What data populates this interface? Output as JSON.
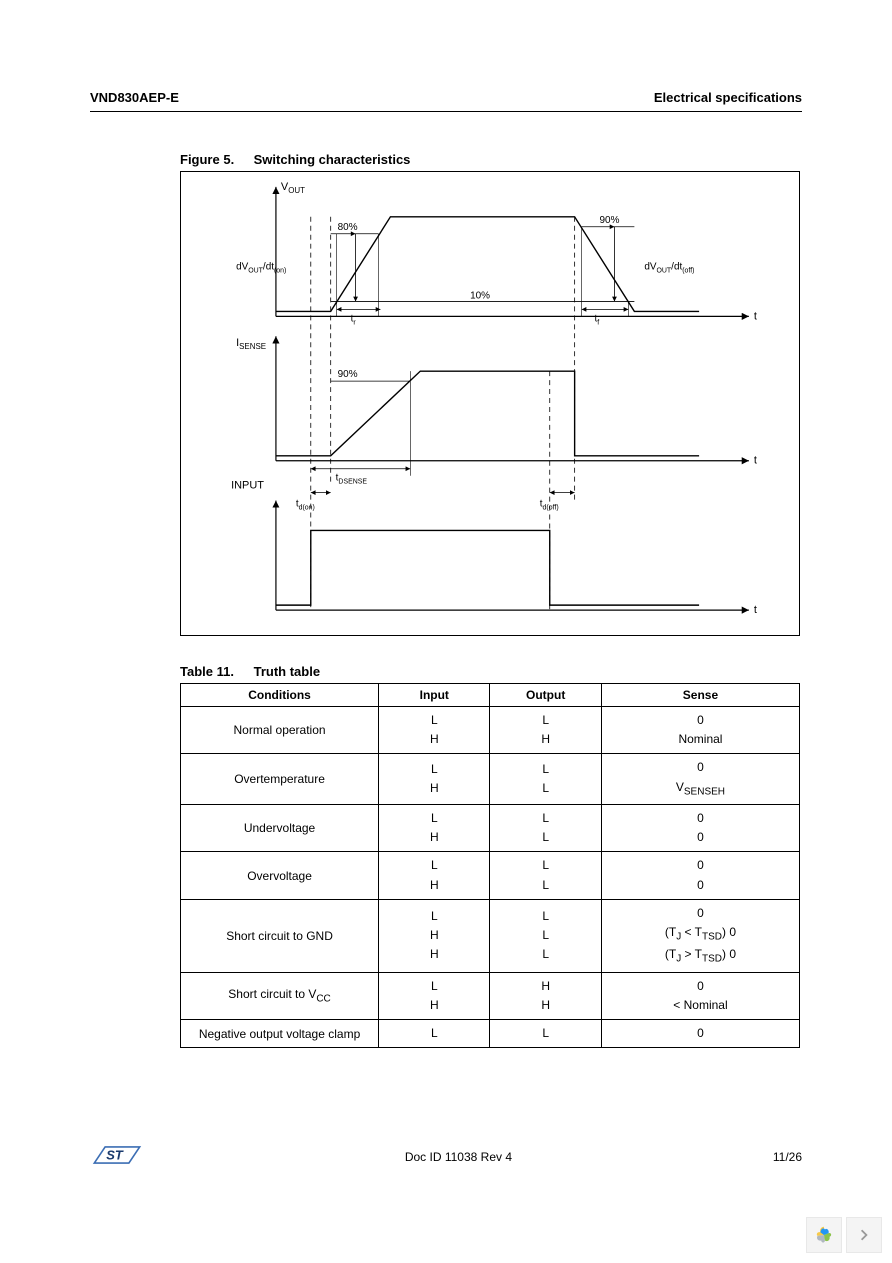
{
  "header": {
    "left": "VND830AEP-E",
    "right": "Electrical specifications"
  },
  "figure": {
    "number": "Figure 5.",
    "title": "Switching characteristics",
    "labels": {
      "vout": "V",
      "vout_sub": "OUT",
      "isense": "I",
      "isense_sub": "SENSE",
      "input": "INPUT",
      "t": "t",
      "pct80": "80%",
      "pct90a": "90%",
      "pct90b": "90%",
      "pct10": "10%",
      "dvon": "dV",
      "dvon_sub": "OUT",
      "dvon_rest": "/dt",
      "dvon_sub2": "(on)",
      "dvoff": "dV",
      "dvoff_sub": "OUT",
      "dvoff_rest": "/dt",
      "dvoff_sub2": "(off)",
      "tr": "t",
      "tr_sub": "r",
      "tf": "t",
      "tf_sub": "f",
      "tdsense": "t",
      "tdsense_sub": "DSENSE",
      "tdon": "t",
      "tdon_sub": "d(on)",
      "tdoff": "t",
      "tdoff_sub": "d(off)"
    },
    "colors": {
      "line": "#000000",
      "bg": "#ffffff"
    },
    "linewidth": 1.2
  },
  "table": {
    "number": "Table 11.",
    "title": "Truth table",
    "columns": [
      "Conditions",
      "Input",
      "Output",
      "Sense"
    ],
    "rows": [
      {
        "cond": "Normal operation",
        "input": [
          "L",
          "H"
        ],
        "output": [
          "L",
          "H"
        ],
        "sense": [
          "0",
          "Nominal"
        ]
      },
      {
        "cond": "Overtemperature",
        "input": [
          "L",
          "H"
        ],
        "output": [
          "L",
          "L"
        ],
        "sense_html": [
          "0",
          "V<sub>SENSEH</sub>"
        ]
      },
      {
        "cond": "Undervoltage",
        "input": [
          "L",
          "H"
        ],
        "output": [
          "L",
          "L"
        ],
        "sense": [
          "0",
          "0"
        ]
      },
      {
        "cond": "Overvoltage",
        "input": [
          "L",
          "H"
        ],
        "output": [
          "L",
          "L"
        ],
        "sense": [
          "0",
          "0"
        ]
      },
      {
        "cond": "Short circuit to GND",
        "input": [
          "L",
          "H",
          "H"
        ],
        "output": [
          "L",
          "L",
          "L"
        ],
        "sense_html": [
          "0",
          "(T<sub>J</sub> &lt; T<sub>TSD</sub>) 0",
          "(T<sub>J</sub> &gt; T<sub>TSD</sub>) 0"
        ]
      },
      {
        "cond_html": "Short circuit to V<sub>CC</sub>",
        "input": [
          "L",
          "H"
        ],
        "output": [
          "H",
          "H"
        ],
        "sense": [
          "0",
          "< Nominal"
        ]
      },
      {
        "cond": "Negative output voltage clamp",
        "input": [
          "L"
        ],
        "output": [
          "L"
        ],
        "sense": [
          "0"
        ]
      }
    ]
  },
  "footer": {
    "doc": "Doc ID 11038 Rev 4",
    "page": "11/26"
  },
  "logo_colors": {
    "blue": "#3c6eb4",
    "text": "#1a3a6e"
  },
  "widget_colors": {
    "yellow": "#f7c948",
    "gray": "#b0b8c0",
    "green": "#8bc34a",
    "blue": "#2196f3",
    "chev": "#999999"
  }
}
